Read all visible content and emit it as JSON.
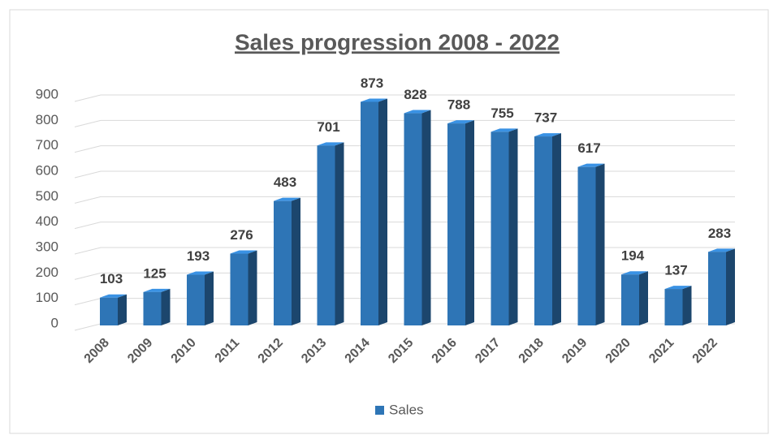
{
  "chart_data": {
    "type": "bar",
    "title": "Sales progression 2008 - 2022",
    "categories": [
      "2008",
      "2009",
      "2010",
      "2011",
      "2012",
      "2013",
      "2014",
      "2015",
      "2016",
      "2017",
      "2018",
      "2019",
      "2020",
      "2021",
      "2022"
    ],
    "series": [
      {
        "name": "Sales",
        "color": "#2e75b6",
        "values": [
          103,
          125,
          193,
          276,
          483,
          701,
          873,
          828,
          788,
          755,
          737,
          617,
          194,
          137,
          283
        ]
      }
    ],
    "ylim": [
      0,
      900
    ],
    "yticks": [
      0,
      100,
      200,
      300,
      400,
      500,
      600,
      700,
      800,
      900
    ],
    "grid": true,
    "legend": "bottom"
  }
}
